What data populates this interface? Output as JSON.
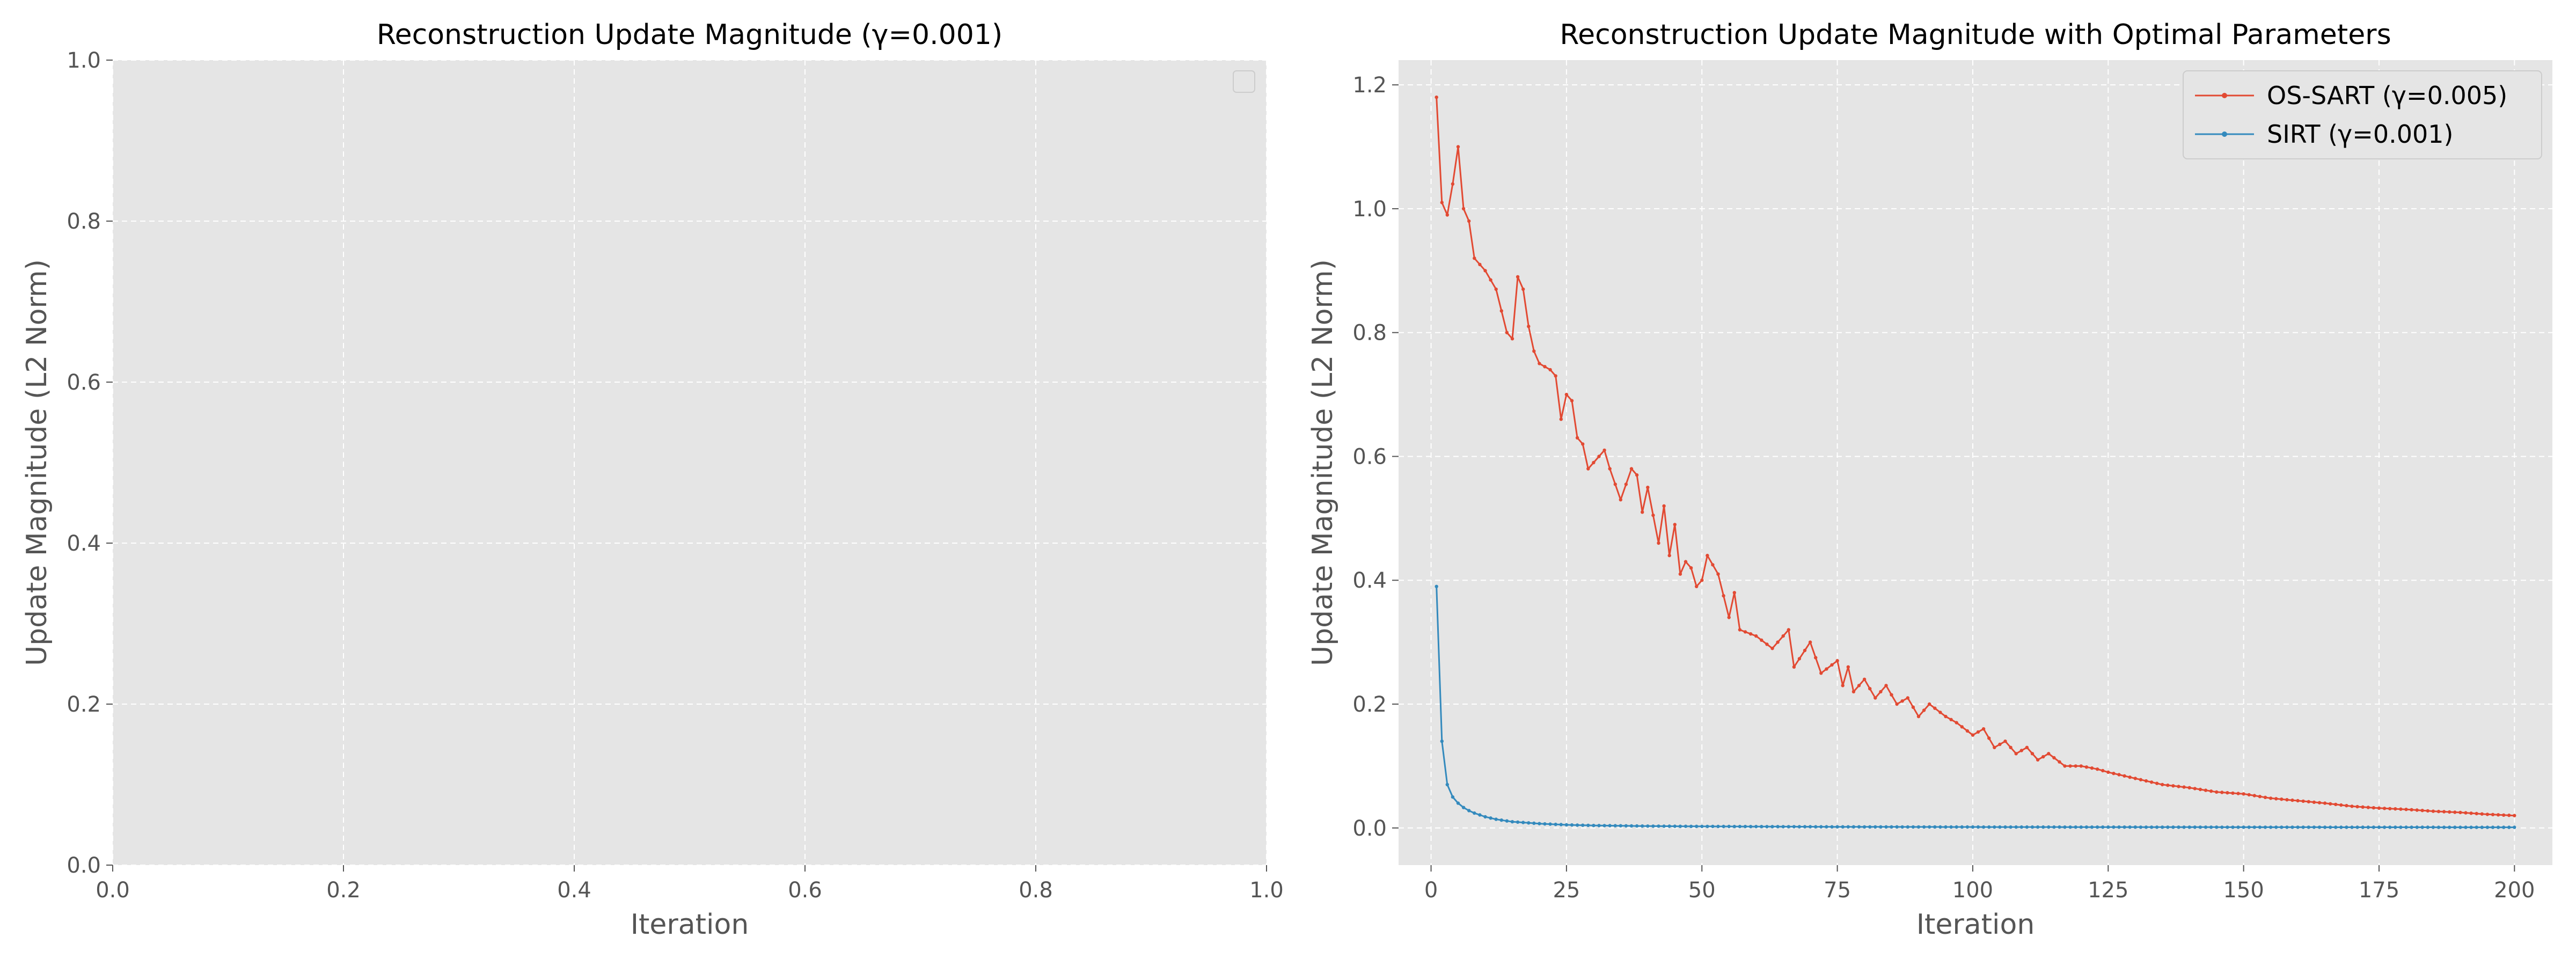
{
  "chart_data": [
    {
      "type": "line",
      "title": "Reconstruction Update Magnitude (γ=0.001)",
      "xlabel": "Iteration",
      "ylabel": "Update Magnitude (L2 Norm)",
      "xlim": [
        0.0,
        1.0
      ],
      "ylim": [
        0.0,
        1.0
      ],
      "xticks": [
        "0.0",
        "0.2",
        "0.4",
        "0.6",
        "0.8",
        "1.0"
      ],
      "yticks": [
        "0.0",
        "0.2",
        "0.4",
        "0.6",
        "0.8",
        "1.0"
      ],
      "grid": true,
      "legend": "top-right (empty)",
      "series": []
    },
    {
      "type": "line",
      "title": "Reconstruction Update Magnitude with Optimal Parameters",
      "xlabel": "Iteration",
      "ylabel": "Update Magnitude (L2 Norm)",
      "xlim": [
        -6,
        207
      ],
      "ylim": [
        -0.06,
        1.24
      ],
      "xticks": [
        "0",
        "25",
        "50",
        "75",
        "100",
        "125",
        "150",
        "175",
        "200"
      ],
      "yticks": [
        "0.0",
        "0.2",
        "0.4",
        "0.6",
        "0.8",
        "1.0",
        "1.2"
      ],
      "grid": true,
      "legend": "top-right",
      "x": {
        "start": 1,
        "end": 200
      },
      "series": [
        {
          "name": "OS-SART (γ=0.005)",
          "color": "#e24a33",
          "marker": "point",
          "keypoints": [
            [
              1,
              1.18
            ],
            [
              2,
              1.01
            ],
            [
              3,
              0.99
            ],
            [
              4,
              1.04
            ],
            [
              5,
              1.1
            ],
            [
              6,
              1.0
            ],
            [
              7,
              0.98
            ],
            [
              8,
              0.92
            ],
            [
              10,
              0.9
            ],
            [
              12,
              0.87
            ],
            [
              14,
              0.8
            ],
            [
              15,
              0.79
            ],
            [
              16,
              0.89
            ],
            [
              17,
              0.87
            ],
            [
              18,
              0.81
            ],
            [
              19,
              0.77
            ],
            [
              20,
              0.75
            ],
            [
              22,
              0.74
            ],
            [
              23,
              0.73
            ],
            [
              24,
              0.66
            ],
            [
              25,
              0.7
            ],
            [
              26,
              0.69
            ],
            [
              27,
              0.63
            ],
            [
              28,
              0.62
            ],
            [
              29,
              0.58
            ],
            [
              30,
              0.59
            ],
            [
              32,
              0.61
            ],
            [
              33,
              0.58
            ],
            [
              35,
              0.53
            ],
            [
              37,
              0.58
            ],
            [
              38,
              0.57
            ],
            [
              39,
              0.51
            ],
            [
              40,
              0.55
            ],
            [
              42,
              0.46
            ],
            [
              43,
              0.52
            ],
            [
              44,
              0.44
            ],
            [
              45,
              0.49
            ],
            [
              46,
              0.41
            ],
            [
              47,
              0.43
            ],
            [
              48,
              0.42
            ],
            [
              49,
              0.39
            ],
            [
              50,
              0.4
            ],
            [
              51,
              0.44
            ],
            [
              53,
              0.41
            ],
            [
              55,
              0.34
            ],
            [
              56,
              0.38
            ],
            [
              57,
              0.32
            ],
            [
              60,
              0.31
            ],
            [
              63,
              0.29
            ],
            [
              65,
              0.31
            ],
            [
              66,
              0.32
            ],
            [
              67,
              0.26
            ],
            [
              70,
              0.3
            ],
            [
              72,
              0.25
            ],
            [
              75,
              0.27
            ],
            [
              76,
              0.23
            ],
            [
              77,
              0.26
            ],
            [
              78,
              0.22
            ],
            [
              80,
              0.24
            ],
            [
              82,
              0.21
            ],
            [
              84,
              0.23
            ],
            [
              86,
              0.2
            ],
            [
              88,
              0.21
            ],
            [
              90,
              0.18
            ],
            [
              92,
              0.2
            ],
            [
              95,
              0.18
            ],
            [
              97,
              0.17
            ],
            [
              100,
              0.15
            ],
            [
              102,
              0.16
            ],
            [
              104,
              0.13
            ],
            [
              106,
              0.14
            ],
            [
              108,
              0.12
            ],
            [
              110,
              0.13
            ],
            [
              112,
              0.11
            ],
            [
              114,
              0.12
            ],
            [
              117,
              0.1
            ],
            [
              120,
              0.1
            ],
            [
              123,
              0.095
            ],
            [
              125,
              0.09
            ],
            [
              130,
              0.08
            ],
            [
              135,
              0.07
            ],
            [
              140,
              0.065
            ],
            [
              145,
              0.058
            ],
            [
              150,
              0.055
            ],
            [
              155,
              0.048
            ],
            [
              160,
              0.044
            ],
            [
              165,
              0.04
            ],
            [
              170,
              0.035
            ],
            [
              175,
              0.032
            ],
            [
              180,
              0.03
            ],
            [
              185,
              0.027
            ],
            [
              190,
              0.025
            ],
            [
              195,
              0.022
            ],
            [
              200,
              0.02
            ]
          ]
        },
        {
          "name": "SIRT (γ=0.001)",
          "color": "#348abd",
          "marker": "point",
          "keypoints": [
            [
              1,
              0.39
            ],
            [
              2,
              0.14
            ],
            [
              3,
              0.07
            ],
            [
              4,
              0.05
            ],
            [
              5,
              0.04
            ],
            [
              6,
              0.033
            ],
            [
              7,
              0.028
            ],
            [
              8,
              0.024
            ],
            [
              10,
              0.018
            ],
            [
              12,
              0.014
            ],
            [
              15,
              0.01
            ],
            [
              20,
              0.007
            ],
            [
              25,
              0.005
            ],
            [
              30,
              0.004
            ],
            [
              40,
              0.003
            ],
            [
              50,
              0.0025
            ],
            [
              75,
              0.0018
            ],
            [
              100,
              0.0015
            ],
            [
              150,
              0.0012
            ],
            [
              200,
              0.001
            ]
          ]
        }
      ]
    }
  ]
}
